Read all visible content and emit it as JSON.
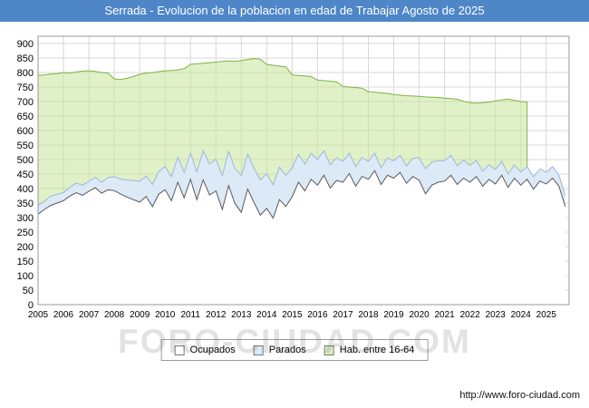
{
  "title_bar": {
    "text": "Serrada - Evolucion de la poblacion en edad de Trabajar Agosto de 2025"
  },
  "watermark": "FORO-CIUDAD.COM",
  "footer": {
    "url": "http://www.foro-ciudad.com"
  },
  "colors": {
    "titlebar_bg": "#4e86c8",
    "grid": "#d8d8d8",
    "plot_border": "#999999"
  },
  "legend": {
    "items": [
      {
        "label": "Ocupados",
        "swatch_fill": "#ffffff"
      },
      {
        "label": "Parados",
        "swatch_fill": "#dce9f7"
      },
      {
        "label": "Hab. entre 16-64",
        "swatch_fill": "#ddefc2"
      }
    ]
  },
  "chart_data": {
    "type": "area",
    "title": "Serrada - Evolucion de la poblacion en edad de Trabajar Agosto de 2025",
    "xlabel": "",
    "ylabel": "",
    "xlim": [
      2005,
      2025.9
    ],
    "ylim": [
      0,
      900
    ],
    "grid": true,
    "legend_position": "bottom",
    "x_ticks": [
      2005,
      2006,
      2007,
      2008,
      2009,
      2010,
      2011,
      2012,
      2013,
      2014,
      2015,
      2016,
      2017,
      2018,
      2019,
      2020,
      2021,
      2022,
      2023,
      2024,
      2025
    ],
    "y_ticks": [
      0,
      50,
      100,
      150,
      200,
      250,
      300,
      350,
      400,
      450,
      500,
      550,
      600,
      650,
      700,
      750,
      800,
      850,
      900
    ],
    "stacking_note": "Parados is plotted stacked on top of Ocupados; Hab. entre 16-64 is a separate total-population area ending mid-2024",
    "series": [
      {
        "id": "hab",
        "name": "Hab. entre 16-64",
        "x_start": 2005.0,
        "x_step": 0.25,
        "fill": "#c7e59b",
        "fill_opacity": 0.55,
        "stroke": "#7cb342",
        "values": [
          790,
          792,
          795,
          796,
          800,
          798,
          802,
          805,
          806,
          804,
          800,
          798,
          778,
          776,
          780,
          786,
          794,
          798,
          800,
          803,
          806,
          807,
          809,
          813,
          828,
          830,
          832,
          834,
          836,
          838,
          840,
          838,
          841,
          845,
          848,
          846,
          828,
          825,
          822,
          820,
          792,
          790,
          788,
          786,
          774,
          772,
          770,
          768,
          752,
          750,
          748,
          746,
          734,
          732,
          730,
          728,
          724,
          722,
          720,
          719,
          718,
          716,
          715,
          714,
          712,
          710,
          708,
          701,
          696,
          694,
          696,
          698,
          702,
          706,
          708,
          704,
          700,
          698
        ]
      },
      {
        "id": "parados",
        "name": "Parados",
        "x_start": 2005.0,
        "x_step": 0.25,
        "fill": "#dce9f7",
        "fill_opacity": 1,
        "stroke": "#9db8d6",
        "values": [
          30,
          28,
          32,
          30,
          28,
          30,
          33,
          35,
          34,
          36,
          38,
          42,
          48,
          52,
          58,
          66,
          72,
          70,
          76,
          78,
          80,
          83,
          86,
          88,
          90,
          96,
          100,
          106,
          110,
          116,
          118,
          121,
          126,
          121,
          118,
          122,
          120,
          115,
          112,
          108,
          100,
          96,
          92,
          90,
          88,
          84,
          80,
          78,
          72,
          70,
          68,
          65,
          62,
          60,
          58,
          60,
          60,
          58,
          60,
          63,
          78,
          86,
          80,
          74,
          70,
          68,
          65,
          62,
          58,
          55,
          52,
          50,
          50,
          48,
          46,
          45,
          45,
          44,
          43,
          42,
          41,
          40,
          39,
          38
        ]
      },
      {
        "id": "ocupados",
        "name": "Ocupados",
        "x_start": 2005.0,
        "x_step": 0.25,
        "fill": "#ffffff",
        "fill_opacity": 1,
        "stroke": "#5a5a5a",
        "values": [
          312,
          328,
          342,
          350,
          358,
          374,
          386,
          377,
          391,
          403,
          384,
          396,
          393,
          381,
          371,
          362,
          353,
          373,
          338,
          381,
          396,
          358,
          422,
          368,
          432,
          362,
          430,
          378,
          392,
          328,
          410,
          348,
          318,
          398,
          352,
          308,
          332,
          298,
          362,
          338,
          372,
          422,
          392,
          432,
          412,
          446,
          402,
          428,
          422,
          452,
          408,
          442,
          432,
          462,
          414,
          446,
          436,
          456,
          418,
          442,
          428,
          382,
          412,
          422,
          426,
          446,
          414,
          436,
          422,
          442,
          408,
          432,
          416,
          446,
          404,
          436,
          412,
          432,
          398,
          426,
          416,
          436,
          408,
          338
        ]
      }
    ]
  }
}
